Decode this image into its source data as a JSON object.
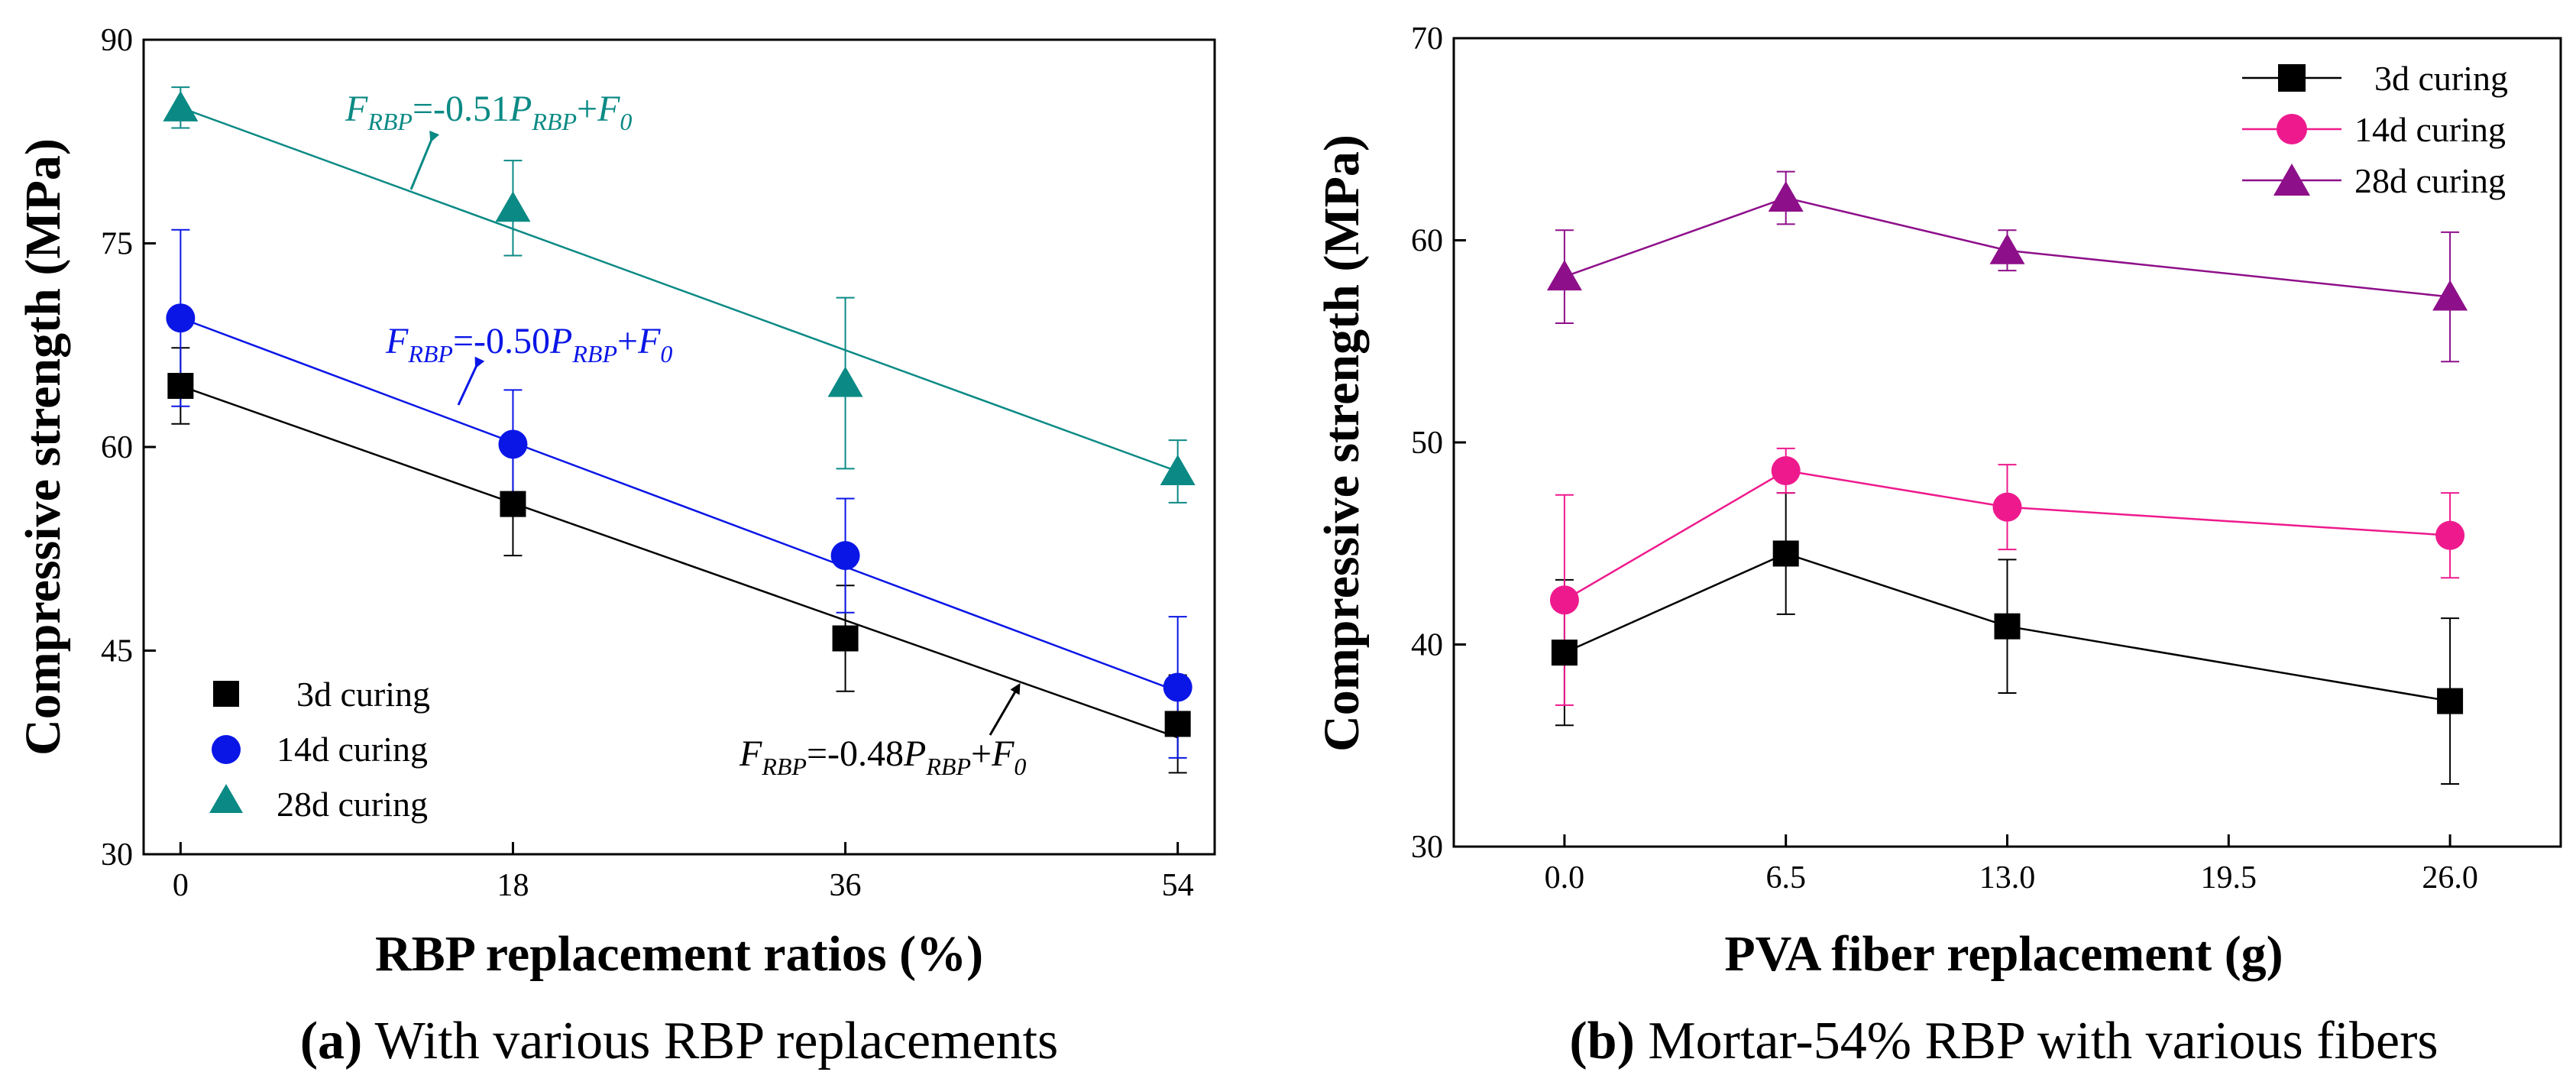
{
  "chart_data": [
    {
      "type": "scatter",
      "xlabel": "RBP replacement ratios (%)",
      "ylabel": "Compressive strength (MPa)",
      "xlim": [
        -2,
        56
      ],
      "ylim": [
        30,
        90
      ],
      "xticks": [
        0,
        18,
        36,
        54
      ],
      "yticks": [
        30,
        45,
        60,
        75,
        90
      ],
      "caption_letter": "(a)",
      "caption_text": " With various RBP replacements",
      "legend_position": "bottom-left",
      "series": [
        {
          "name": "3d curing",
          "marker": "square",
          "color": "#000000",
          "x": [
            0,
            18,
            36,
            54
          ],
          "y": [
            64.5,
            55.8,
            45.9,
            39.6
          ],
          "err": [
            2.8,
            3.8,
            3.9,
            3.6
          ],
          "fit": {
            "x": [
              0,
              54
            ],
            "y": [
              64.5,
              38.6
            ]
          },
          "equation": {
            "F": "F",
            "sub1": "RBP",
            "mid": "=-0.48",
            "P": "P",
            "sub2": "RBP",
            "tail": "+",
            "F0": "F",
            "sub0": "0"
          }
        },
        {
          "name": "14d curing",
          "marker": "circle",
          "color": "#0a16e6",
          "x": [
            0,
            18,
            36,
            54
          ],
          "y": [
            69.5,
            60.2,
            52.0,
            42.3
          ],
          "err": [
            6.5,
            4.0,
            4.2,
            5.2
          ],
          "fit": {
            "x": [
              0,
              54
            ],
            "y": [
              69.5,
              42.0
            ]
          },
          "equation": {
            "F": "F",
            "sub1": "RBP",
            "mid": "=-0.50",
            "P": "P",
            "sub2": "RBP",
            "tail": "+",
            "F0": "F",
            "sub0": "0"
          }
        },
        {
          "name": "28d curing",
          "marker": "triangle",
          "color": "#0b8a85",
          "x": [
            0,
            18,
            36,
            54
          ],
          "y": [
            85.0,
            77.6,
            64.7,
            58.2
          ],
          "err": [
            1.5,
            3.5,
            6.3,
            2.3
          ],
          "fit": {
            "x": [
              0,
              54
            ],
            "y": [
              85.0,
              58.2
            ]
          },
          "equation": {
            "F": "F",
            "sub1": "RBP",
            "mid": "=-0.51",
            "P": "P",
            "sub2": "RBP",
            "tail": "+",
            "F0": "F",
            "sub0": "0"
          }
        }
      ]
    },
    {
      "type": "line",
      "xlabel": "PVA fiber replacement (g)",
      "ylabel": "Compressive strength (MPa)",
      "xlim": [
        -3.25,
        29.25
      ],
      "ylim": [
        30,
        70
      ],
      "xticks": [
        0.0,
        6.5,
        13.0,
        19.5,
        26.0
      ],
      "xtick_labels": [
        "0.0",
        "6.5",
        "13.0",
        "19.5",
        "26.0"
      ],
      "yticks": [
        30,
        40,
        50,
        60,
        70
      ],
      "caption_letter": "(b)",
      "caption_text": " Mortar-54% RBP with various fibers",
      "legend_position": "top-right",
      "series": [
        {
          "name": "3d curing",
          "marker": "square",
          "color": "#000000",
          "x": [
            0,
            6.5,
            13,
            26
          ],
          "y": [
            39.6,
            44.5,
            40.9,
            37.2
          ],
          "err": [
            3.6,
            3.0,
            3.3,
            4.1
          ]
        },
        {
          "name": "14d curing",
          "marker": "circle",
          "color": "#ee1a8d",
          "x": [
            0,
            6.5,
            13,
            26
          ],
          "y": [
            42.2,
            48.6,
            46.8,
            45.4
          ],
          "err": [
            5.2,
            1.1,
            2.1,
            2.1
          ]
        },
        {
          "name": "28d curing",
          "marker": "triangle",
          "color": "#8e0f8a",
          "x": [
            0,
            6.5,
            13,
            26
          ],
          "y": [
            58.2,
            62.1,
            59.5,
            57.2
          ],
          "err": [
            2.3,
            1.3,
            1.0,
            3.2
          ]
        }
      ]
    }
  ]
}
